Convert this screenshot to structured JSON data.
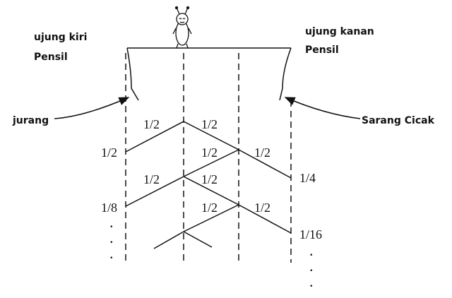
{
  "labels": {
    "left_end_line1": "ujung kiri",
    "left_end_line2": "Pensil",
    "right_end_line1": "ujung kanan",
    "right_end_line2": "Pensil",
    "cliff": "jurang",
    "nest": "Sarang Cicak"
  },
  "fractions": {
    "top_left": "1/2",
    "top_right": "1/2",
    "left_1": "1/2",
    "mid_2a": "1/2",
    "right_2": "1/2",
    "right_quarter": "1/4",
    "left_3": "1/2",
    "mid_3": "1/2",
    "left_eighth": "1/8",
    "mid_4a": "1/2",
    "right_4": "1/2",
    "right_sixteenth": "1/16"
  },
  "ellipsis": {
    "left": ".",
    "right": "."
  },
  "icons": {
    "gecko": "gecko-icon"
  }
}
